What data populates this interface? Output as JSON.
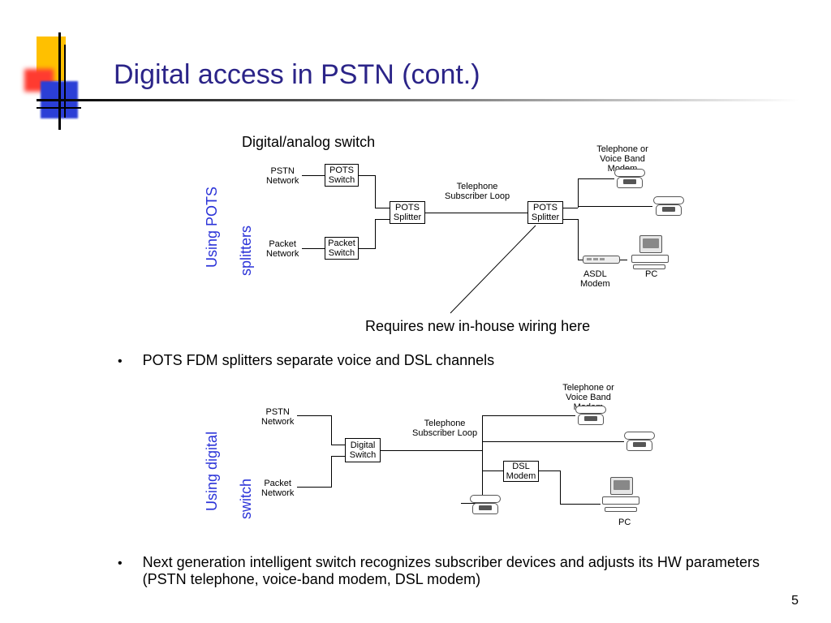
{
  "page_number": "5",
  "title": "Digital access in PSTN (cont.)",
  "subtitle_top": "Digital/analog switch",
  "annotation": "Requires new in-house wiring here",
  "section1_label_line1": "Using POTS",
  "section1_label_line2": "splitters",
  "section2_label_line1": "Using digital",
  "section2_label_line2": "switch",
  "bullet1": "POTS FDM splitters separate voice and DSL channels",
  "bullet2": "Next generation intelligent switch recognizes subscriber devices and adjusts its HW parameters (PSTN telephone, voice-band modem, DSL modem)",
  "diagram1": {
    "type": "flowchart",
    "font_size": 11,
    "border_color": "#000000",
    "nodes": {
      "pstn_net": "PSTN\nNetwork",
      "packet_net": "Packet\nNetwork",
      "pots_switch": "POTS\nSwitch",
      "packet_switch": "Packet\nSwitch",
      "pots_splitter_l": "POTS\nSplitter",
      "pots_splitter_r": "POTS\nSplitter",
      "loop_label": "Telephone\nSubscriber Loop",
      "phone_label": "Telephone or\nVoice Band Modem",
      "adsl_label": "ASDL\nModem",
      "pc_label": "PC"
    }
  },
  "diagram2": {
    "type": "flowchart",
    "nodes": {
      "pstn_net": "PSTN\nNetwork",
      "packet_net": "Packet\nNetwork",
      "digital_switch": "Digital\nSwitch",
      "loop_label": "Telephone\nSubscriber Loop",
      "dsl_modem": "DSL\nModem",
      "phone_label": "Telephone or\nVoice Band Modem",
      "pc_label": "PC"
    }
  },
  "colors": {
    "title": "#2b2488",
    "vertical_label": "#2b33d8",
    "accent_yellow": "#ffc000",
    "accent_red": "#ff3b30",
    "accent_blue": "#2b3fd6"
  }
}
